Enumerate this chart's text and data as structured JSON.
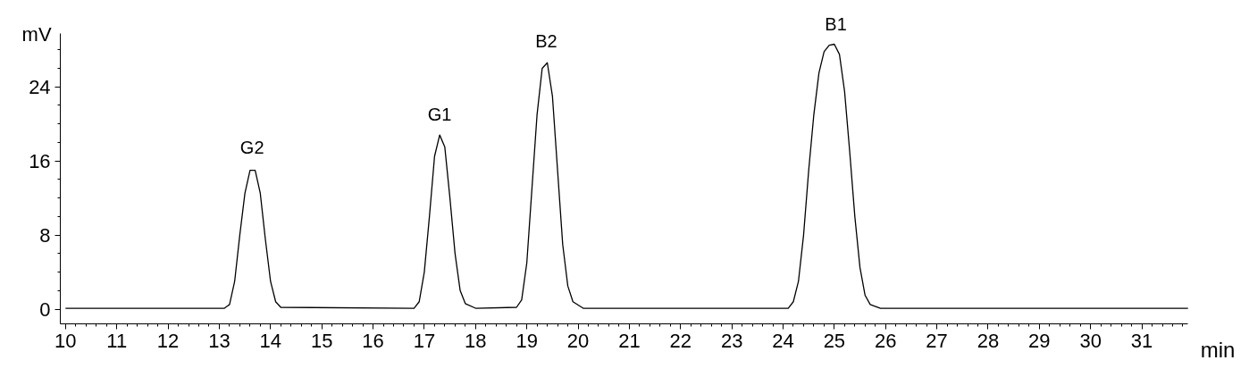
{
  "chart_data": {
    "type": "line",
    "xlabel": "min",
    "ylabel": "mV",
    "xlim": [
      9.9,
      31.9
    ],
    "ylim": [
      -1.6,
      29.8
    ],
    "xticks": [
      10,
      11,
      12,
      13,
      14,
      15,
      16,
      17,
      18,
      19,
      20,
      21,
      22,
      23,
      24,
      25,
      26,
      27,
      28,
      29,
      30,
      31
    ],
    "yticks": [
      0,
      8,
      16,
      24
    ],
    "grid": false,
    "marker": "none",
    "line_style": "solid",
    "series": [
      {
        "color": "#000000",
        "x": [
          10,
          13.1,
          13.2,
          13.3,
          13.4,
          13.5,
          13.6,
          13.7,
          13.8,
          13.9,
          14.0,
          14.1,
          14.2,
          16.8,
          16.9,
          17.0,
          17.1,
          17.2,
          17.3,
          17.4,
          17.5,
          17.6,
          17.7,
          17.8,
          18.0,
          18.8,
          18.9,
          19.0,
          19.1,
          19.2,
          19.3,
          19.4,
          19.5,
          19.6,
          19.7,
          19.8,
          19.9,
          20.1,
          24.1,
          24.2,
          24.3,
          24.4,
          24.5,
          24.6,
          24.7,
          24.8,
          24.9,
          25.0,
          25.1,
          25.2,
          25.3,
          25.4,
          25.5,
          25.6,
          25.7,
          25.9,
          31.9
        ],
        "values": [
          0.1,
          0.1,
          0.5,
          3,
          8,
          12.5,
          15,
          15,
          12.5,
          7.5,
          3,
          0.8,
          0.2,
          0.1,
          0.8,
          4,
          10,
          16.5,
          18.8,
          17.5,
          12,
          6,
          2,
          0.6,
          0.1,
          0.2,
          1,
          5,
          13,
          21,
          26,
          26.6,
          23,
          15,
          7,
          2.5,
          0.8,
          0.1,
          0.1,
          0.8,
          3,
          8,
          15,
          21,
          25.5,
          27.8,
          28.5,
          28.6,
          27.5,
          23.5,
          17,
          10,
          4.5,
          1.5,
          0.5,
          0.1,
          0.1
        ]
      }
    ],
    "annotations": [
      {
        "text": "G2",
        "x": 13.64,
        "y": 15.2
      },
      {
        "text": "G1",
        "x": 17.3,
        "y": 18.8
      },
      {
        "text": "B2",
        "x": 19.38,
        "y": 26.7
      },
      {
        "text": "B1",
        "x": 25.03,
        "y": 28.6
      }
    ]
  }
}
